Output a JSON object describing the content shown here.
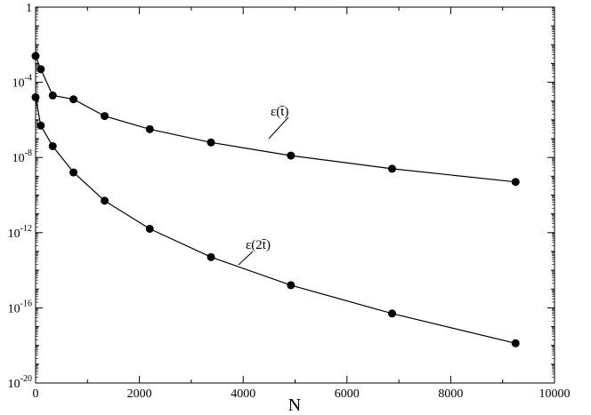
{
  "chart_data": {
    "type": "line",
    "title": "",
    "xlabel": "N",
    "ylabel": "",
    "xlim": [
      0,
      10000
    ],
    "ylim_exponent": [
      -20,
      0
    ],
    "y_scale": "log",
    "grid": false,
    "x_ticks": [
      "0",
      "2000",
      "4000",
      "6000",
      "8000",
      "10000"
    ],
    "y_ticks": [
      {
        "base": "1",
        "exp": ""
      },
      {
        "base": "10",
        "exp": "-4"
      },
      {
        "base": "10",
        "exp": "-8"
      },
      {
        "base": "10",
        "exp": "-12"
      },
      {
        "base": "10",
        "exp": "-16"
      },
      {
        "base": "10",
        "exp": "-20"
      }
    ],
    "series": [
      {
        "name": "ε(t̄)",
        "x": [
          0,
          100,
          330,
          730,
          1330,
          2200,
          3380,
          4920,
          6870,
          9250
        ],
        "y": [
          0.0025,
          0.0005,
          2e-05,
          1.25e-05,
          1.6e-06,
          3.2e-07,
          6.3e-08,
          1.26e-08,
          2.5e-09,
          5e-10
        ]
      },
      {
        "name": "ε(2t̄)",
        "x": [
          0,
          100,
          330,
          730,
          1330,
          2200,
          3380,
          4920,
          6870,
          9250
        ],
        "y": [
          1.6e-05,
          5e-07,
          4e-08,
          1.6e-09,
          5e-11,
          1.6e-12,
          5e-14,
          1.6e-15,
          5e-17,
          1.3e-18
        ]
      }
    ],
    "annotations": [
      "ε(t̄)",
      "ε(2t̄)"
    ]
  }
}
